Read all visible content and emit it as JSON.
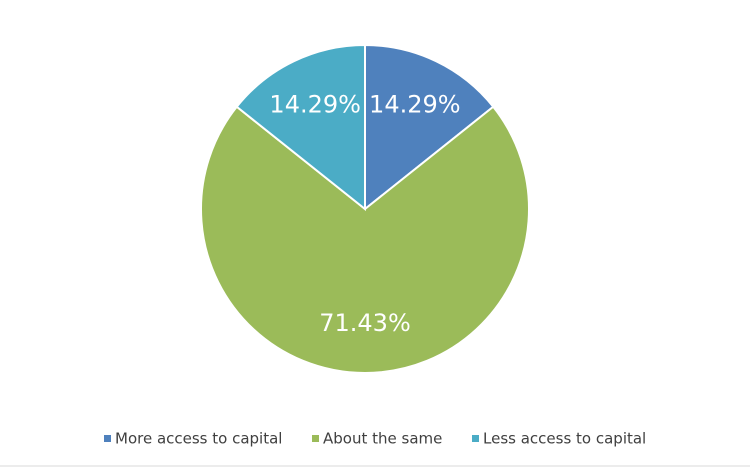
{
  "chart_data": {
    "type": "pie",
    "categories": [
      "More access to capital",
      "About the same",
      "Less access to capital"
    ],
    "values": [
      14.29,
      71.43,
      14.29
    ],
    "value_labels": [
      "14.29%",
      "71.43%",
      "14.29%"
    ],
    "colors": [
      "#4f81bd",
      "#9bbb59",
      "#4bacc6"
    ],
    "legend": "bottom"
  }
}
